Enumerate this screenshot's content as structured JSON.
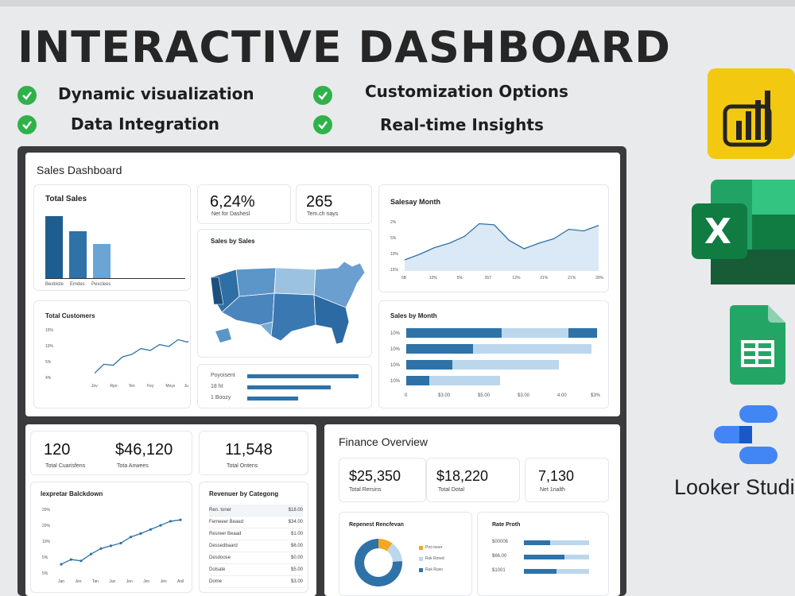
{
  "title": "INTERACTIVE DASHBOARD",
  "features": [
    "Dynamic visualization",
    "Data Integration",
    "Customization Options",
    "Real-time Insights"
  ],
  "colors": {
    "check": "#2fb24a",
    "primary": "#2e72a8",
    "light": "#bcd7ec",
    "dark": "#1f5d8e",
    "orange": "#f5a623"
  },
  "sales_dashboard": {
    "title": "Sales Dashboard",
    "total_sales": {
      "title": "Total Sales",
      "bars": [
        1.0,
        0.76,
        0.55
      ],
      "labels": [
        "Bexbiste",
        "Emdes",
        "Pexclees"
      ]
    },
    "kpi1": {
      "value": "6,24%",
      "label": "Net for Dashesl"
    },
    "kpi2": {
      "value": "265",
      "label": "Tem.ch nays"
    },
    "sales_by_sales": {
      "title": "Sales by Sales"
    },
    "total_customers": {
      "title": "Total Customers",
      "yticks": [
        "15%",
        "10%",
        "5%",
        "4%"
      ],
      "xticks": [
        "Jov",
        "Rpo",
        "Ten",
        "Fey",
        "Moys",
        "Jun",
        "Aul"
      ],
      "values": [
        0.12,
        0.3,
        0.28,
        0.45,
        0.5,
        0.62,
        0.58,
        0.7,
        0.66,
        0.8,
        0.75,
        0.9,
        0.95
      ]
    },
    "saleday_month": {
      "title": "Salesay Month",
      "yticks": [
        "2%",
        "5%",
        "10%",
        "15%"
      ],
      "xticks": [
        "5B",
        "10%",
        "5%",
        "357",
        "12%",
        "21%",
        "21%",
        "30%"
      ],
      "values": [
        0.2,
        0.3,
        0.42,
        0.5,
        0.62,
        0.85,
        0.83,
        0.55,
        0.4,
        0.5,
        0.58,
        0.75,
        0.72,
        0.82
      ]
    },
    "sales_by_month": {
      "title": "Sales by Month",
      "yticks": [
        "10%",
        "10%",
        "10%",
        "10%"
      ],
      "xticks": [
        "0",
        "$3.00",
        "$5.00",
        "$3.00",
        "4.00",
        "$3%"
      ],
      "bars": [
        [
          0.5,
          0.85,
          1.0
        ],
        [
          0.35,
          0.97
        ],
        [
          0.24,
          0.8
        ],
        [
          0.12,
          0.49
        ]
      ]
    },
    "legend_rows": {
      "labels": [
        "Poyoisent",
        "18 ht",
        "1 Boozy"
      ],
      "values": [
        1.0,
        0.75,
        0.46
      ]
    }
  },
  "lower_left": {
    "kpis": [
      {
        "value": "120",
        "label": "Total Cuarisfens"
      },
      {
        "value": "$46,120",
        "label": "Tota Anwees"
      },
      {
        "value": "11,548",
        "label": "Total Ontens"
      }
    ],
    "line_card": {
      "title": "Iexpretar Balckdown",
      "yticks": [
        "20%",
        "20%",
        "10%",
        "5%",
        "5%"
      ],
      "xticks": [
        "Jan",
        "Jen",
        "Tan",
        "Jun",
        "Jen",
        "Jen",
        "Jen",
        "Anll"
      ],
      "values": [
        0.15,
        0.22,
        0.2,
        0.3,
        0.38,
        0.42,
        0.46,
        0.55,
        0.6,
        0.66,
        0.72,
        0.78,
        0.8
      ]
    },
    "category": {
      "title": "Revenuer by Categong",
      "rows": [
        {
          "name": "Ren. toner",
          "value": "$18.00"
        },
        {
          "name": "Femeeer Beaed",
          "value": "$34.00"
        },
        {
          "name": "Resreer Beaad",
          "value": "$1.00"
        },
        {
          "name": "Dessedbaard",
          "value": "$6.00"
        },
        {
          "name": "Desdoose",
          "value": "$0.00"
        },
        {
          "name": "Dolsate",
          "value": "$5.00"
        },
        {
          "name": "Dome",
          "value": "$3.00"
        }
      ]
    }
  },
  "finance": {
    "title": "Finance Overview",
    "kpis": [
      {
        "value": "$25,350",
        "label": "Total Rersins"
      },
      {
        "value": "$18,220",
        "label": "Total Dotal"
      },
      {
        "value": "7,130",
        "label": "Net 1nalth"
      }
    ],
    "donut": {
      "title": "Repenest Rencfevan",
      "legend": [
        "Poo ieoer",
        "Rsk Rored",
        "Ruk Ruso"
      ],
      "slices": [
        0.1,
        0.14,
        0.76
      ]
    },
    "rate": {
      "title": "Rate Proth",
      "labels": [
        "$00006",
        "$66.00",
        "$1001"
      ],
      "values": [
        0.4,
        0.62,
        0.5
      ]
    }
  },
  "brands": {
    "looker": "Looker Studio",
    "excel_letter": "X"
  }
}
